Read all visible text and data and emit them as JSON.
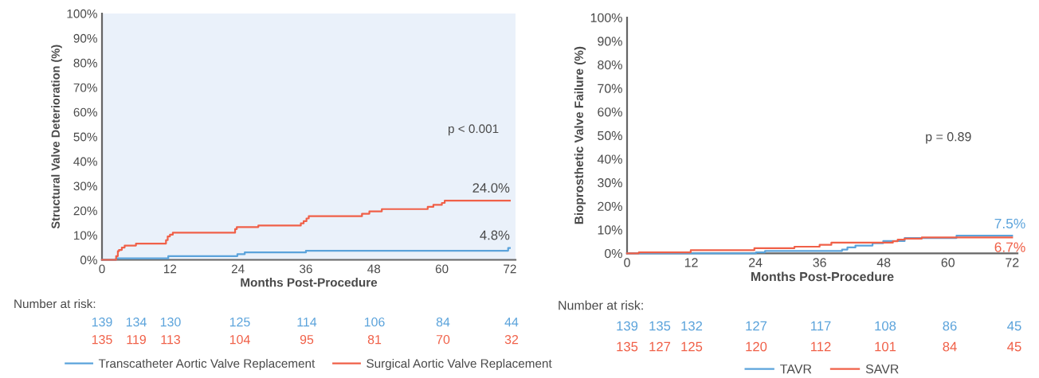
{
  "chart_data": [
    {
      "type": "step",
      "xlabel": "Months Post-Procedure",
      "ylabel": "Structural Valve Deterioration (%)",
      "xlim": [
        0,
        73
      ],
      "ylim": [
        0,
        100
      ],
      "xticks": [
        0,
        12,
        24,
        36,
        48,
        60,
        72
      ],
      "yticks": [
        {
          "value": 0,
          "label": "0%"
        },
        {
          "value": 10,
          "label": "10%"
        },
        {
          "value": 20,
          "label": "20%"
        },
        {
          "value": 30,
          "label": "30%"
        },
        {
          "value": 40,
          "label": "40%"
        },
        {
          "value": 50,
          "label": "50%"
        },
        {
          "value": 60,
          "label": "60%"
        },
        {
          "value": 70,
          "label": "70%"
        },
        {
          "value": 80,
          "label": "80%"
        },
        {
          "value": 90,
          "label": "90%"
        },
        {
          "value": 100,
          "label": "100%"
        }
      ],
      "bands": [
        {
          "axis": "x",
          "from": 0,
          "to": 73,
          "color": "#eaf1fa"
        }
      ],
      "series": [
        {
          "name": "Transcatheter Aortic Valve Replacement",
          "color": "#5ba3db",
          "x": [
            0,
            2.5,
            11.7,
            23.9,
            25.2,
            36.0,
            71.7,
            72
          ],
          "values": [
            0,
            0.6,
            1.5,
            2.3,
            3.0,
            3.7,
            4.8,
            4.8
          ]
        },
        {
          "name": "Surgical Aortic Valve Replacement",
          "color": "#f06048",
          "x": [
            0,
            2.5,
            2.8,
            3.0,
            3.5,
            4.0,
            6.0,
            11.3,
            11.6,
            12.0,
            12.5,
            23.5,
            23.8,
            27.6,
            35.1,
            35.6,
            36.1,
            36.5,
            45.9,
            47.2,
            49.4,
            57.5,
            58.5,
            60.0,
            60.5,
            72
          ],
          "values": [
            0,
            1.5,
            3.5,
            4.0,
            5.0,
            5.8,
            6.6,
            8.0,
            9.5,
            10.2,
            11.0,
            12.5,
            13.3,
            13.9,
            14.8,
            15.7,
            16.8,
            17.7,
            18.7,
            19.7,
            20.6,
            21.5,
            22.3,
            23.1,
            24.0,
            24.0
          ]
        }
      ],
      "annotations": [
        "p < 0.001",
        {
          "text": "24.0%",
          "x": 72,
          "y": 24.0
        },
        {
          "text": "4.8%",
          "x": 72,
          "y": 4.8
        },
        "Number at risk:",
        "139",
        "134",
        "130",
        "125",
        "114",
        "106",
        "84",
        "44",
        "135",
        "119",
        "113",
        "104",
        "95",
        "81",
        "70",
        "32"
      ],
      "legend": "bottom"
    },
    {
      "type": "step",
      "xlabel": "Months Post-Procedure",
      "ylabel": "Bioprosthetic Valve Failure (%)",
      "xlim": [
        0,
        73
      ],
      "ylim": [
        0,
        100
      ],
      "xticks": [
        0,
        12,
        24,
        36,
        48,
        60,
        72
      ],
      "yticks": [
        {
          "value": 0,
          "label": "0%"
        },
        {
          "value": 10,
          "label": "10%"
        },
        {
          "value": 20,
          "label": "20%"
        },
        {
          "value": 30,
          "label": "30%"
        },
        {
          "value": 40,
          "label": "40%"
        },
        {
          "value": 50,
          "label": "50%"
        },
        {
          "value": 60,
          "label": "60%"
        },
        {
          "value": 70,
          "label": "70%"
        },
        {
          "value": 80,
          "label": "80%"
        },
        {
          "value": 90,
          "label": "90%"
        },
        {
          "value": 100,
          "label": "100%"
        }
      ],
      "series": [
        {
          "name": "TAVR",
          "color": "#5ba3db",
          "x": [
            0,
            24.1,
            25.8,
            40.2,
            41.2,
            42.7,
            45.9,
            47.9,
            51.9,
            61.6,
            72
          ],
          "values": [
            0,
            0.4,
            1.0,
            1.6,
            2.5,
            3.3,
            4.3,
            5.2,
            6.5,
            7.5,
            7.5
          ],
          "value_labels": [
            null,
            null,
            null,
            null,
            null,
            null,
            null,
            null,
            null,
            null,
            "7.5%"
          ]
        },
        {
          "name": "SAVR",
          "color": "#f06048",
          "x": [
            0,
            2.2,
            11.9,
            23.8,
            31.3,
            36.0,
            38.2,
            49.7,
            50.6,
            51.9,
            55.1,
            72
          ],
          "values": [
            0,
            0.4,
            1.3,
            2.2,
            2.8,
            3.6,
            4.5,
            5.1,
            5.8,
            6.2,
            6.7,
            6.7
          ],
          "value_labels": [
            null,
            null,
            null,
            null,
            null,
            null,
            null,
            null,
            null,
            null,
            null,
            "6.7%"
          ]
        }
      ],
      "annotations": [
        "p = 0.89",
        "Number at risk:",
        "139",
        "135",
        "132",
        "127",
        "117",
        "108",
        "86",
        "45",
        "135",
        "127",
        "125",
        "120",
        "112",
        "101",
        "84",
        "45"
      ],
      "legend": "bottom"
    }
  ]
}
